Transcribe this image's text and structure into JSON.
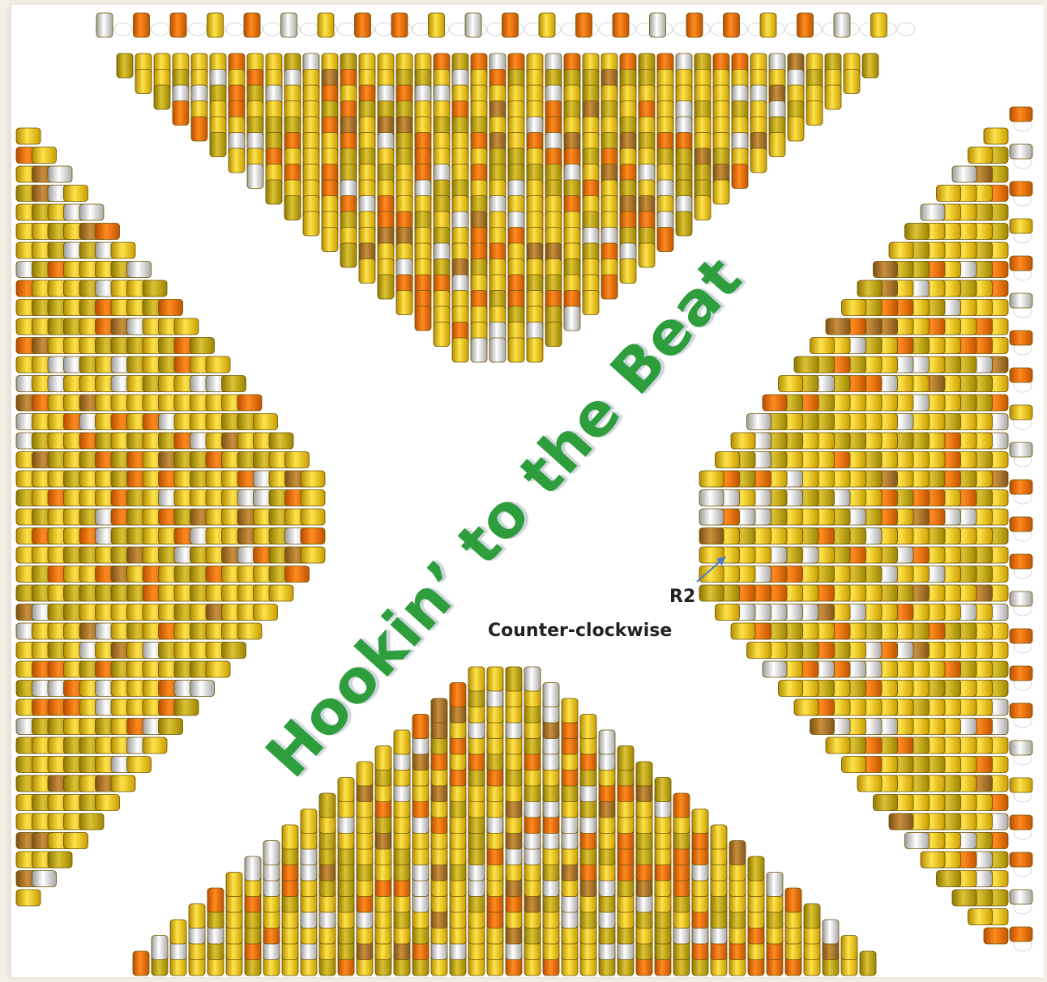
{
  "title": "Hookin’ to the Beat",
  "annotation": {
    "row": "R2",
    "direction": "Counter-clockwise"
  },
  "colors": {
    "gold_yellow": "#e8c21c",
    "olive_gold": "#c9a215",
    "orange": "#e8730e",
    "silver_white": "#e8e8e8",
    "bronze": "#a9742c",
    "title_green": "#2e9e3d",
    "arrow_blue": "#4a7cc4"
  },
  "icons": {
    "arrow": "pointer-arrow-icon"
  }
}
